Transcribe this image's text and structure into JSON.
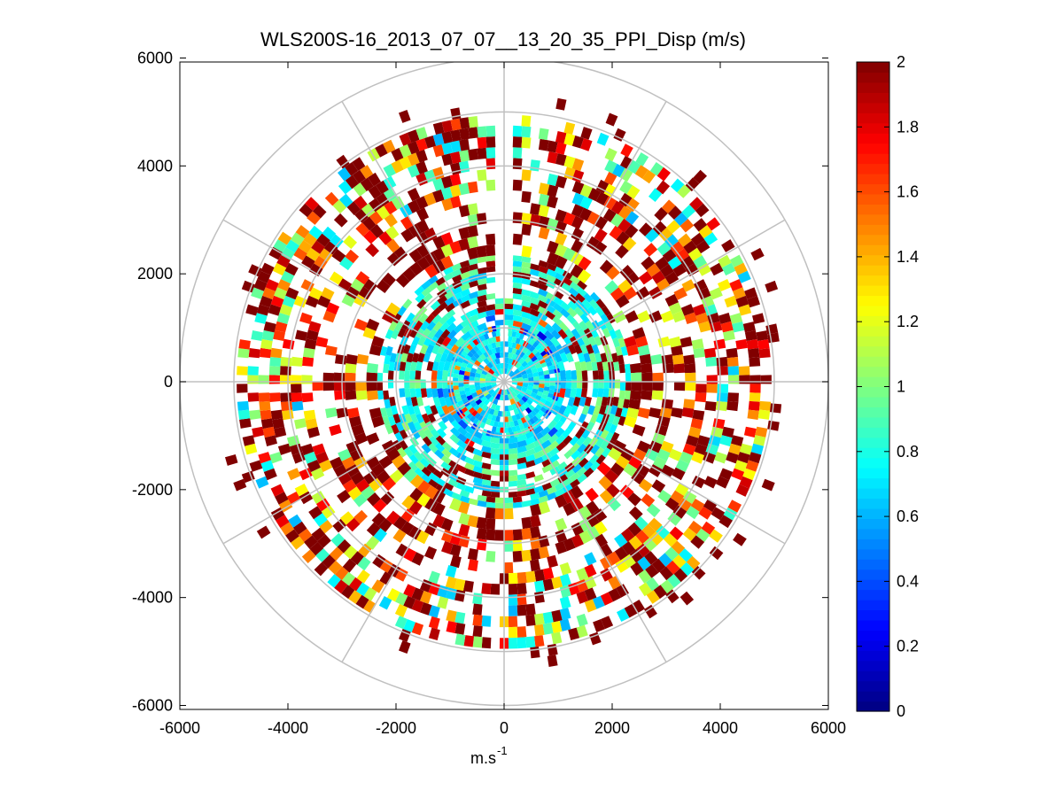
{
  "chart_data": {
    "type": "heatmap",
    "subtype": "polar-ppi",
    "title": "WLS200S-16_2013_07_07__13_20_35_PPI_Disp (m/s)",
    "xlabel": "m.s",
    "xlabel_superscript": "-1",
    "ylabel": "",
    "xlim": [
      -6000,
      6000
    ],
    "ylim": [
      -6000,
      6000
    ],
    "x_ticks": [
      "-6000",
      "-4000",
      "-2000",
      "0",
      "2000",
      "4000",
      "6000"
    ],
    "y_ticks": [
      "6000",
      "4000",
      "2000",
      "0",
      "-2000",
      "-4000",
      "-6000"
    ],
    "polar_grid": {
      "ring_radii_m": [
        1000,
        2000,
        3000,
        4000,
        5000,
        6000
      ],
      "spoke_angles_deg": [
        0,
        30,
        60,
        90,
        120,
        150,
        180,
        210,
        240,
        270,
        300,
        330
      ]
    },
    "colorbar": {
      "colormap": "jet",
      "min": 0,
      "max": 2,
      "tick_labels": [
        "2",
        "1.8",
        "1.6",
        "1.4",
        "1.2",
        "1",
        "0.8",
        "0.6",
        "0.4",
        "0.2",
        "0"
      ]
    },
    "scan": {
      "missing_sector_deg": [
        -3,
        3
      ],
      "gate_spacing_m": 200,
      "dense_inner_radius_m": 2300,
      "max_range_m": 5300,
      "legend_location": "colorbar-right"
    }
  }
}
